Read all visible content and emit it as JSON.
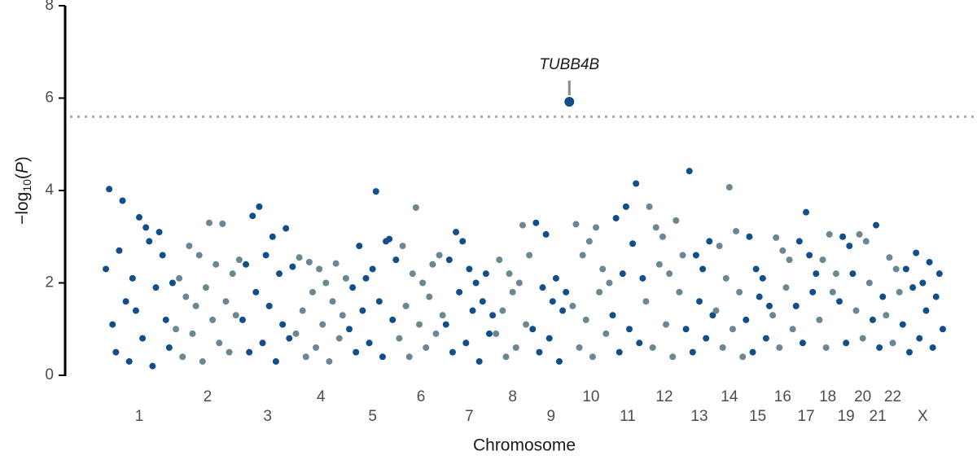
{
  "chart_data": {
    "type": "manhattan",
    "y_label": [
      "−log",
      "10",
      "(",
      "P",
      ")"
    ],
    "x_label": "Chromosome",
    "ylim": [
      0,
      8
    ],
    "yticks": [
      0,
      2,
      4,
      6,
      8
    ],
    "threshold": 5.6,
    "threshold_color": "#a6a6a6",
    "series": [
      {
        "name": "1",
        "color": "#124e89",
        "values": [
          2.3,
          4.03,
          1.1,
          0.5,
          2.7,
          3.78,
          1.6,
          0.3,
          2.1,
          1.4,
          3.42,
          0.8,
          3.2,
          2.9,
          0.2,
          1.9,
          3.1,
          2.6,
          1.2,
          0.6,
          2.0
        ]
      },
      {
        "name": "2",
        "color": "#6b8791",
        "values": [
          1.0,
          2.1,
          0.4,
          1.7,
          2.8,
          0.9,
          1.5,
          2.6,
          0.3,
          1.9,
          3.3,
          1.2,
          2.4,
          0.7,
          3.28,
          1.6,
          0.5,
          2.2,
          1.3,
          2.5
        ]
      },
      {
        "name": "3",
        "color": "#124e89",
        "values": [
          1.2,
          2.4,
          0.5,
          3.45,
          1.8,
          3.65,
          0.7,
          2.6,
          1.5,
          3.0,
          0.3,
          2.2,
          1.1,
          3.18,
          0.8,
          2.35
        ]
      },
      {
        "name": "4",
        "color": "#6b8791",
        "values": [
          0.9,
          2.55,
          1.4,
          0.4,
          2.45,
          1.8,
          0.6,
          2.3,
          1.1,
          2.0,
          0.3,
          1.6,
          2.42,
          0.8,
          1.3,
          2.1
        ]
      },
      {
        "name": "5",
        "color": "#124e89",
        "values": [
          1.0,
          1.9,
          0.5,
          2.8,
          1.4,
          2.1,
          0.7,
          2.3,
          3.98,
          1.6,
          0.4,
          2.9,
          2.95,
          1.2,
          2.5
        ]
      },
      {
        "name": "6",
        "color": "#6b8791",
        "values": [
          0.8,
          2.8,
          1.5,
          0.4,
          2.2,
          3.63,
          1.1,
          2.0,
          0.6,
          1.7,
          2.4,
          0.9,
          2.6,
          1.3
        ]
      },
      {
        "name": "7",
        "color": "#124e89",
        "values": [
          1.1,
          2.5,
          0.5,
          3.1,
          1.8,
          2.9,
          0.7,
          2.3,
          1.4,
          2.0,
          0.3,
          1.6,
          2.2,
          0.9,
          1.3
        ]
      },
      {
        "name": "8",
        "color": "#6b8791",
        "values": [
          0.9,
          2.5,
          1.4,
          0.4,
          2.2,
          1.8,
          0.6,
          2.0,
          3.25,
          1.1,
          2.6
        ]
      },
      {
        "name": "9",
        "color": "#124e89",
        "values": [
          1.0,
          3.3,
          0.5,
          1.9,
          3.05,
          0.8,
          1.6,
          2.1,
          0.3,
          1.4,
          1.8,
          5.92
        ],
        "point_labels": [
          null,
          null,
          null,
          null,
          null,
          null,
          null,
          null,
          null,
          null,
          null,
          "TUBB4B"
        ]
      },
      {
        "name": "10",
        "color": "#6b8791",
        "values": [
          1.5,
          3.27,
          0.6,
          2.6,
          1.2,
          2.9,
          0.4,
          3.2,
          1.8,
          2.3,
          0.9,
          2.0
        ]
      },
      {
        "name": "11",
        "color": "#124e89",
        "values": [
          1.3,
          3.4,
          0.5,
          2.2,
          3.65,
          1.0,
          2.85,
          4.15,
          0.7,
          2.1
        ]
      },
      {
        "name": "12",
        "color": "#6b8791",
        "values": [
          1.6,
          3.65,
          0.6,
          3.2,
          2.4,
          3.0,
          1.1,
          2.2,
          0.4,
          3.35,
          1.8,
          2.6
        ]
      },
      {
        "name": "13",
        "color": "#124e89",
        "values": [
          1.0,
          4.42,
          0.5,
          2.6,
          1.6,
          2.3,
          0.8,
          2.9,
          1.3
        ]
      },
      {
        "name": "14",
        "color": "#6b8791",
        "values": [
          1.4,
          2.8,
          0.6,
          2.1,
          4.07,
          1.0,
          3.12,
          1.8,
          0.4
        ]
      },
      {
        "name": "15",
        "color": "#124e89",
        "values": [
          1.2,
          3.0,
          0.5,
          2.3,
          1.7,
          2.1,
          0.8,
          1.5
        ]
      },
      {
        "name": "16",
        "color": "#6b8791",
        "values": [
          1.3,
          2.98,
          0.6,
          2.7,
          1.9,
          2.5,
          1.0
        ]
      },
      {
        "name": "17",
        "color": "#124e89",
        "values": [
          1.5,
          2.9,
          0.7,
          3.53,
          2.6,
          1.8,
          2.2
        ]
      },
      {
        "name": "18",
        "color": "#6b8791",
        "values": [
          1.2,
          2.5,
          0.6,
          3.05,
          1.8,
          2.2
        ]
      },
      {
        "name": "19",
        "color": "#124e89",
        "values": [
          1.6,
          3.0,
          0.7,
          2.8,
          2.2
        ]
      },
      {
        "name": "20",
        "color": "#6b8791",
        "values": [
          1.4,
          3.05,
          0.8,
          2.9,
          2.0
        ]
      },
      {
        "name": "21",
        "color": "#124e89",
        "values": [
          1.2,
          3.25,
          0.6,
          1.7
        ]
      },
      {
        "name": "22",
        "color": "#6b8791",
        "values": [
          1.3,
          2.55,
          0.7,
          2.3,
          1.8
        ]
      },
      {
        "name": "X",
        "color": "#124e89",
        "values": [
          1.1,
          2.3,
          0.5,
          1.9,
          2.65,
          0.8,
          2.0,
          1.4,
          2.45,
          0.6,
          1.7,
          2.2,
          1.0
        ]
      }
    ]
  }
}
